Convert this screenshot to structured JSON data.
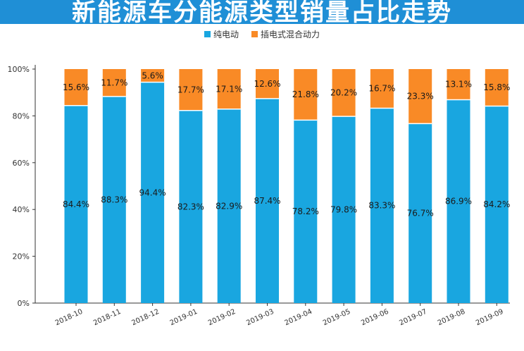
{
  "title": "新能源车分能源类型销量占比走势",
  "colors": {
    "title_bg": "#1f8fd6",
    "ev": "#19a6e0",
    "phev": "#f98a26"
  },
  "chart_data": {
    "type": "bar",
    "stacked": true,
    "categories": [
      "2018-10",
      "2018-11",
      "2018-12",
      "2019-01",
      "2019-02",
      "2019-03",
      "2019-04",
      "2019-05",
      "2019-06",
      "2019-07",
      "2019-08",
      "2019-09"
    ],
    "series": [
      {
        "name": "纯电动",
        "values": [
          84.4,
          88.3,
          94.4,
          82.3,
          82.9,
          87.4,
          78.2,
          79.8,
          83.3,
          76.7,
          86.9,
          84.2
        ]
      },
      {
        "name": "插电式混合动力",
        "values": [
          15.6,
          11.7,
          5.6,
          17.7,
          17.1,
          12.6,
          21.8,
          20.2,
          16.7,
          23.3,
          13.1,
          15.8
        ]
      }
    ],
    "y_ticks": [
      "0%",
      "20%",
      "40%",
      "60%",
      "80%",
      "100%"
    ],
    "ylim": [
      0,
      100
    ],
    "legend": "top-center",
    "grid": false
  }
}
